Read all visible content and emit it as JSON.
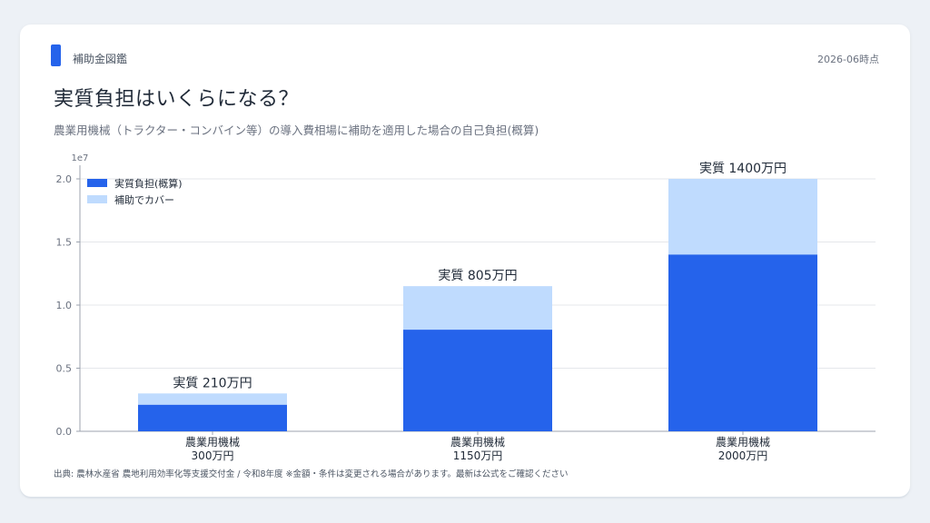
{
  "header": {
    "brand": "補助金図鑑",
    "as_of": "2026-06時点",
    "title": "実質負担はいくらになる？",
    "subtitle": "農業用機械（トラクター・コンバイン等）の導入費相場に補助を適用した場合の自己負担(概算)"
  },
  "footer": {
    "source": "出典: 農林水産省 農地利用効率化等支援交付金 / 令和8年度 ※金額・条件は変更される場合があります。最新は公式をご確認ください"
  },
  "colors": {
    "net_cost": "#2563eb",
    "subsidy": "#bfdbfe"
  },
  "chart_data": {
    "type": "bar",
    "stacked": true,
    "categories": [
      "農業用機械\n300万円",
      "農業用機械\n1150万円",
      "農業用機械\n2000万円"
    ],
    "series": [
      {
        "name": "実質負担(概算)",
        "values": [
          2100000,
          8050000,
          14000000
        ]
      },
      {
        "name": "補助でカバー",
        "values": [
          900000,
          3450000,
          6000000
        ]
      }
    ],
    "data_labels": [
      "実質 210万円",
      "実質 805万円",
      "実質 1400万円"
    ],
    "ylim": [
      0,
      20000000
    ],
    "yticks": [
      "0.0",
      "0.5",
      "1.0",
      "1.5",
      "2.0"
    ],
    "y_offset_text": "1e7",
    "grid": true,
    "legend": "top-left"
  }
}
